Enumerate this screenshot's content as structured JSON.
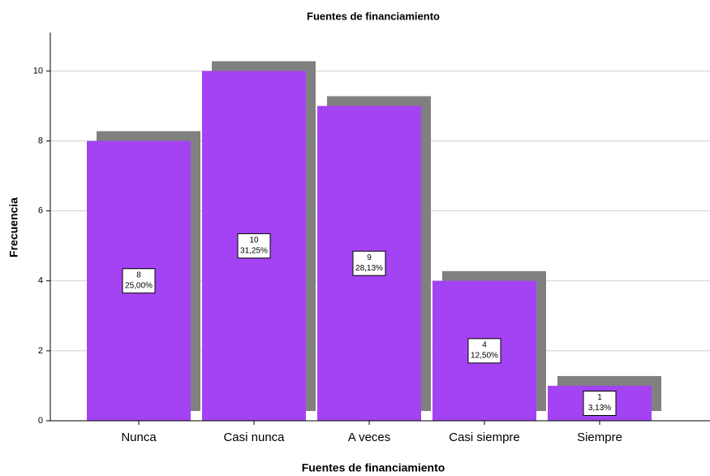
{
  "chart_data": {
    "type": "bar",
    "title": "Fuentes de financiamiento",
    "x_label": "Fuentes de financiamiento",
    "y_label": "Frecuencia",
    "categories": [
      "Nunca",
      "Casi nunca",
      "A veces",
      "Casi siempre",
      "Siempre"
    ],
    "values": [
      8,
      10,
      9,
      4,
      1
    ],
    "percentages": [
      25.0,
      31.25,
      28.13,
      12.5,
      3.13
    ],
    "percentage_labels": [
      "25,00%",
      "31,25%",
      "28,13%",
      "12,50%",
      "3,13%"
    ],
    "color": "#a443f3",
    "shadow_color": "#808080",
    "ylim": [
      0,
      11.1
    ],
    "yticks": [
      0,
      2,
      4,
      6,
      8,
      10
    ],
    "grid": true
  }
}
